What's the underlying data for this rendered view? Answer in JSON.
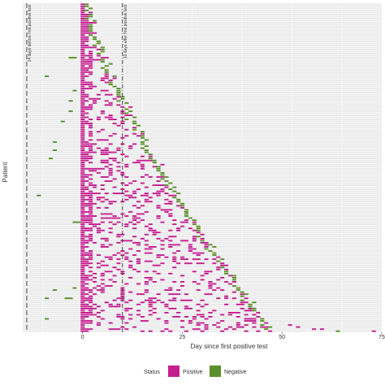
{
  "chart_data": {
    "type": "heatmap",
    "title": "",
    "xlabel": "Day since first positive test",
    "ylabel": "Patient",
    "xlim": [
      -15,
      75
    ],
    "x_ticks": [
      "0",
      "25",
      "50",
      "75"
    ],
    "x_tick_values": [
      0,
      25,
      50,
      75
    ],
    "patients_count": 160,
    "grid": true,
    "legend": {
      "title": "Status",
      "position": "bottom",
      "entries": [
        {
          "label": "Positive",
          "color": "#c41f8f"
        },
        {
          "label": "Negative",
          "color": "#5a8f2b"
        }
      ]
    },
    "reference_lines": [
      {
        "x": -14,
        "label": "14 days before first positive test",
        "style": "long-dash"
      },
      {
        "x": 10,
        "label": "10 days after first positive test",
        "style": "dash-dot"
      }
    ],
    "series": [
      {
        "name": "Positive",
        "color": "#c41f8f",
        "description_values": "Positive test results; every patient positive on day 0, positives continue until a final negative that moves later for lower rows"
      },
      {
        "name": "Negative",
        "color": "#5a8f2b",
        "description_values": "Negative test results; mostly the last test per patient, scattered earlier negatives before day 0"
      }
    ],
    "negative_tail_max_day": 48,
    "positive_max_day": 73
  }
}
